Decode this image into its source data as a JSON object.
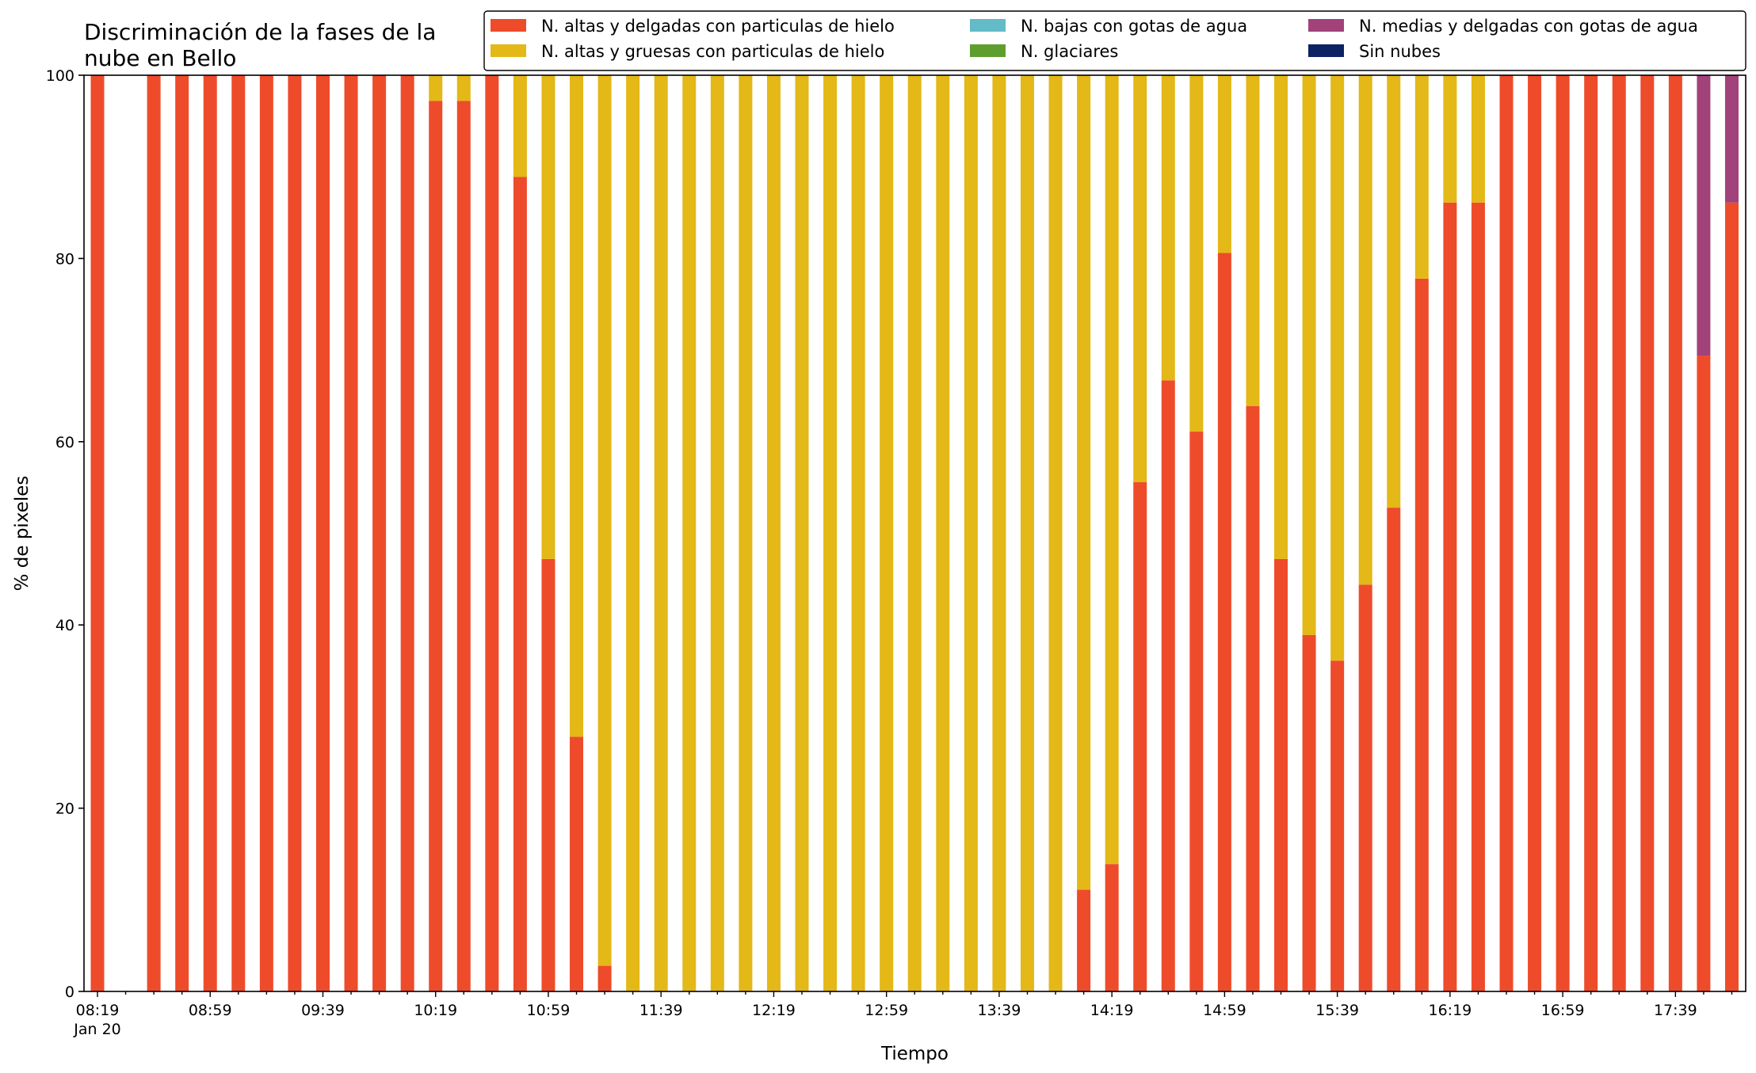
{
  "chart_data": {
    "type": "bar",
    "stacked": true,
    "title": "Discriminación de la fases de la\nnube en Bello",
    "xlabel": "Tiempo",
    "ylabel": "% de pixeles",
    "ylim": [
      0,
      100
    ],
    "yticks": [
      0,
      20,
      40,
      60,
      80,
      100
    ],
    "grid": false,
    "legend_position": "top-right",
    "legend_columns": 3,
    "x_start": "08:19",
    "x_step_minutes": 10,
    "x_count": 59,
    "x_tick_labels": [
      {
        "x": "08:19",
        "label": "08:19",
        "sublabel": "Jan 20"
      },
      {
        "x": "08:59",
        "label": "08:59"
      },
      {
        "x": "09:39",
        "label": "09:39"
      },
      {
        "x": "10:19",
        "label": "10:19"
      },
      {
        "x": "10:59",
        "label": "10:59"
      },
      {
        "x": "11:39",
        "label": "11:39"
      },
      {
        "x": "12:19",
        "label": "12:19"
      },
      {
        "x": "12:59",
        "label": "12:59"
      },
      {
        "x": "13:39",
        "label": "13:39"
      },
      {
        "x": "14:19",
        "label": "14:19"
      },
      {
        "x": "14:59",
        "label": "14:59"
      },
      {
        "x": "15:39",
        "label": "15:39"
      },
      {
        "x": "16:19",
        "label": "16:19"
      },
      {
        "x": "16:59",
        "label": "16:59"
      },
      {
        "x": "17:39",
        "label": "17:39"
      }
    ],
    "series": [
      {
        "name": "N. altas y delgadas con particulas de hielo",
        "color": "#EE4B2B",
        "values": [
          100,
          null,
          100,
          100,
          100,
          100,
          100,
          100,
          100,
          100,
          100,
          100,
          97.2,
          97.2,
          100,
          88.9,
          47.2,
          27.8,
          2.8,
          0,
          0,
          0,
          0,
          0,
          0,
          0,
          0,
          0,
          0,
          0,
          0,
          0,
          0,
          0,
          0,
          11.1,
          13.9,
          55.6,
          66.7,
          61.1,
          80.6,
          63.9,
          47.2,
          38.9,
          36.1,
          44.4,
          52.8,
          77.8,
          86.1,
          86.1,
          100,
          100,
          100,
          100,
          100,
          100,
          100,
          69.4,
          86.1
        ]
      },
      {
        "name": "N. altas y gruesas con particulas de hielo",
        "color": "#E3B817",
        "values": [
          0,
          null,
          0,
          0,
          0,
          0,
          0,
          0,
          0,
          0,
          0,
          0,
          2.8,
          2.8,
          0,
          11.1,
          52.8,
          72.2,
          97.2,
          100,
          100,
          100,
          100,
          100,
          100,
          100,
          100,
          100,
          100,
          100,
          100,
          100,
          100,
          100,
          100,
          88.9,
          86.1,
          44.4,
          33.3,
          38.9,
          19.4,
          36.1,
          52.8,
          61.1,
          63.9,
          55.6,
          47.2,
          22.2,
          13.9,
          13.9,
          0,
          0,
          0,
          0,
          0,
          0,
          0,
          0,
          0
        ]
      },
      {
        "name": "N. bajas con gotas de agua",
        "color": "#62BBC6",
        "values": [
          0,
          null,
          0,
          0,
          0,
          0,
          0,
          0,
          0,
          0,
          0,
          0,
          0,
          0,
          0,
          0,
          0,
          0,
          0,
          0,
          0,
          0,
          0,
          0,
          0,
          0,
          0,
          0,
          0,
          0,
          0,
          0,
          0,
          0,
          0,
          0,
          0,
          0,
          0,
          0,
          0,
          0,
          0,
          0,
          0,
          0,
          0,
          0,
          0,
          0,
          0,
          0,
          0,
          0,
          0,
          0,
          0,
          0,
          0
        ]
      },
      {
        "name": "N. glaciares",
        "color": "#5E9E2E",
        "values": [
          0,
          null,
          0,
          0,
          0,
          0,
          0,
          0,
          0,
          0,
          0,
          0,
          0,
          0,
          0,
          0,
          0,
          0,
          0,
          0,
          0,
          0,
          0,
          0,
          0,
          0,
          0,
          0,
          0,
          0,
          0,
          0,
          0,
          0,
          0,
          0,
          0,
          0,
          0,
          0,
          0,
          0,
          0,
          0,
          0,
          0,
          0,
          0,
          0,
          0,
          0,
          0,
          0,
          0,
          0,
          0,
          0,
          0,
          0
        ]
      },
      {
        "name": "N. medias y delgadas con gotas de agua",
        "color": "#A2427A",
        "values": [
          0,
          null,
          0,
          0,
          0,
          0,
          0,
          0,
          0,
          0,
          0,
          0,
          0,
          0,
          0,
          0,
          0,
          0,
          0,
          0,
          0,
          0,
          0,
          0,
          0,
          0,
          0,
          0,
          0,
          0,
          0,
          0,
          0,
          0,
          0,
          0,
          0,
          0,
          0,
          0,
          0,
          0,
          0,
          0,
          0,
          0,
          0,
          0,
          0,
          0,
          0,
          0,
          0,
          0,
          0,
          0,
          0,
          30.6,
          13.9
        ]
      },
      {
        "name": "Sin nubes",
        "color": "#0B2362",
        "values": [
          0,
          null,
          0,
          0,
          0,
          0,
          0,
          0,
          0,
          0,
          0,
          0,
          0,
          0,
          0,
          0,
          0,
          0,
          0,
          0,
          0,
          0,
          0,
          0,
          0,
          0,
          0,
          0,
          0,
          0,
          0,
          0,
          0,
          0,
          0,
          0,
          0,
          0,
          0,
          0,
          0,
          0,
          0,
          0,
          0,
          0,
          0,
          0,
          0,
          0,
          0,
          0,
          0,
          0,
          0,
          0,
          0,
          0,
          0
        ]
      }
    ]
  }
}
